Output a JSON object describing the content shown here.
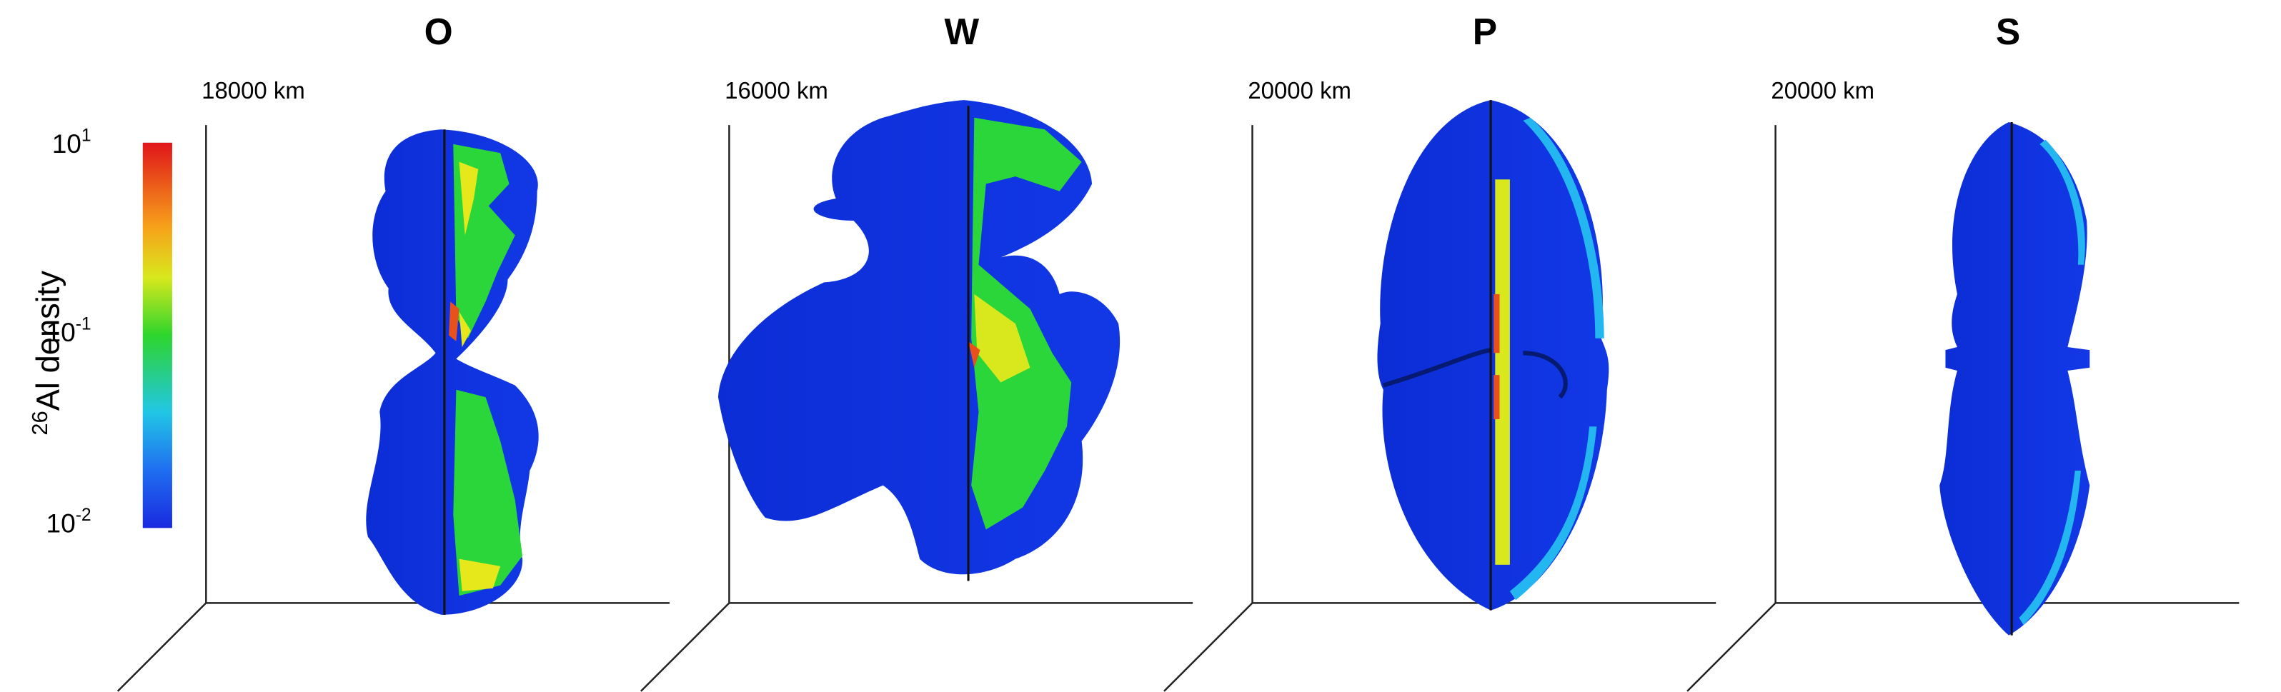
{
  "colorbar": {
    "label": {
      "isotope_mass": "26",
      "text": "Al density"
    },
    "ticks": [
      {
        "base": "10",
        "exponent": "1"
      },
      {
        "base": "10",
        "exponent": "-1"
      },
      {
        "base": "10",
        "exponent": "-2"
      }
    ]
  },
  "panels": [
    {
      "title": "O",
      "scale": "18000 km"
    },
    {
      "title": "W",
      "scale": "16000 km"
    },
    {
      "title": "P",
      "scale": "20000 km"
    },
    {
      "title": "S",
      "scale": "20000 km"
    }
  ]
}
